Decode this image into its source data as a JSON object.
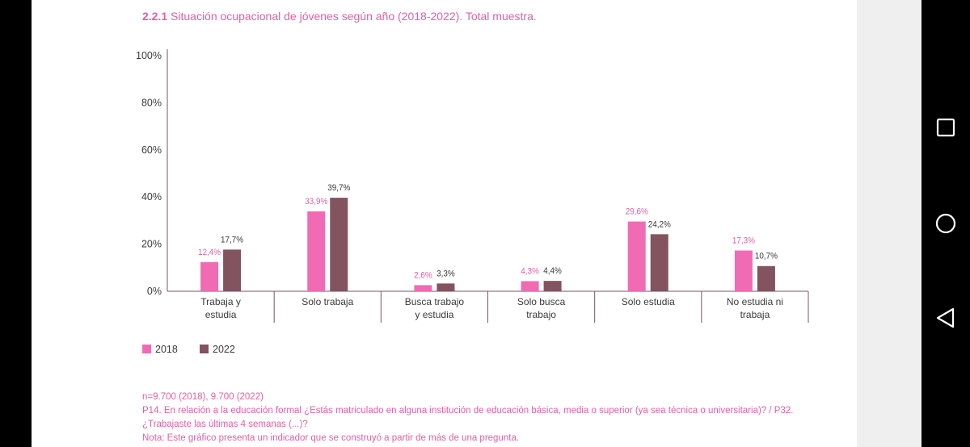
{
  "header": {
    "title_number": "2.2.1",
    "title_text": "Situación ocupacional de jóvenes según año (2018-2022). Total muestra."
  },
  "colors": {
    "series_2018": "#f06bb4",
    "series_2022": "#83535f",
    "axis": "#7a5663",
    "text": "#3a3a3a",
    "accent": "#e05fa6"
  },
  "chart_data": {
    "type": "bar",
    "title": "2.2.1 Situación ocupacional de jóvenes según año (2018-2022). Total muestra.",
    "categories": [
      [
        "Trabaja y",
        "estudia"
      ],
      [
        "Solo trabaja"
      ],
      [
        "Busca trabajo",
        "y estudia"
      ],
      [
        "Solo busca",
        "trabajo"
      ],
      [
        "Solo estudia"
      ],
      [
        "No estudia ni",
        "trabaja"
      ]
    ],
    "series": [
      {
        "name": "2018",
        "values": [
          12.4,
          33.9,
          2.6,
          4.3,
          29.6,
          17.3
        ],
        "labels": [
          "12,4%",
          "33,9%",
          "2,6%",
          "4,3%",
          "29,6%",
          "17,3%"
        ]
      },
      {
        "name": "2022",
        "values": [
          17.7,
          39.7,
          3.3,
          4.4,
          24.2,
          10.7
        ],
        "labels": [
          "17,7%",
          "39,7%",
          "3,3%",
          "4,4%",
          "24,2%",
          "10,7%"
        ]
      }
    ],
    "yticks": [
      "100%",
      "80%",
      "60%",
      "40%",
      "20%",
      "0%"
    ],
    "ylim": [
      0,
      100
    ],
    "legend_position": "bottom-left",
    "grid": false
  },
  "notes": {
    "sample": "n=9.700 (2018), 9.700 (2022)",
    "question_line1": "P14. En relación a la educación formal ¿Estás matriculado en alguna institución de educación básica, media o superior (ya sea técnica o universitaria)? / P32.",
    "question_line2": "¿Trabajaste las últimas 4 semanas (...)?",
    "note": "Nota: Este gráfico presenta un indicador que se construyó a partir de más de una pregunta."
  },
  "nav": {
    "recent_icon": "square-icon",
    "home_icon": "circle-icon",
    "back_icon": "triangle-back-icon"
  }
}
